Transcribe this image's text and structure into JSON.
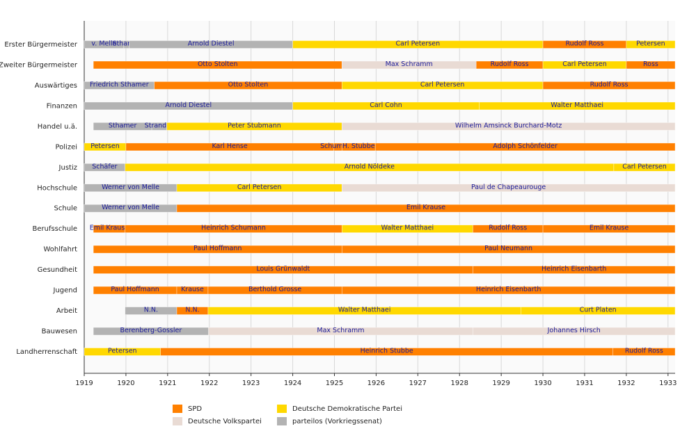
{
  "chart_data": {
    "type": "timeline",
    "xlim": [
      1919,
      1933.17
    ],
    "xticks": [
      1919,
      1920,
      1921,
      1922,
      1923,
      1924,
      1925,
      1926,
      1927,
      1928,
      1929,
      1930,
      1931,
      1932,
      1933
    ],
    "grid": true,
    "series": [
      {
        "name": "SPD",
        "color": "#ff8000"
      },
      {
        "name": "Deutsche Volkspartei",
        "color": "#e9dbd4"
      },
      {
        "name": "Deutsche Demokratische Partei",
        "color": "#ffd800"
      },
      {
        "name": "parteilos (Vorkriegssenat)",
        "color": "#b3b3b3"
      }
    ],
    "rows": [
      {
        "label": "Erster Bürgermeister",
        "segments": [
          {
            "name": "v. Melle",
            "party": 3,
            "start": 1919.0,
            "end": 1919.95
          },
          {
            "name": "Sthamer",
            "party": 3,
            "start": 1919.95,
            "end": 1920.08
          },
          {
            "name": "Arnold Diestel",
            "party": 3,
            "start": 1920.08,
            "end": 1924.0
          },
          {
            "name": "Carl Petersen",
            "party": 2,
            "start": 1924.0,
            "end": 1930.0
          },
          {
            "name": "Rudolf Ross",
            "party": 0,
            "start": 1930.0,
            "end": 1932.0
          },
          {
            "name": "Petersen",
            "party": 2,
            "start": 1932.0,
            "end": 1933.17
          }
        ]
      },
      {
        "label": "Zweiter Bürgermeister",
        "segments": [
          {
            "name": "Otto Stolten",
            "party": 0,
            "start": 1919.22,
            "end": 1925.18
          },
          {
            "name": "Max Schramm",
            "party": 1,
            "start": 1925.18,
            "end": 1928.4
          },
          {
            "name": "Rudolf Ross",
            "party": 0,
            "start": 1928.4,
            "end": 1930.0
          },
          {
            "name": "Carl Petersen",
            "party": 2,
            "start": 1930.0,
            "end": 1932.0
          },
          {
            "name": "Ross",
            "party": 0,
            "start": 1932.0,
            "end": 1933.17
          }
        ]
      },
      {
        "label": "Auswärtiges",
        "segments": [
          {
            "name": "Friedrich Sthamer",
            "party": 3,
            "start": 1919.0,
            "end": 1920.68
          },
          {
            "name": "Otto Stolten",
            "party": 0,
            "start": 1920.68,
            "end": 1925.18
          },
          {
            "name": "Carl Petersen",
            "party": 2,
            "start": 1925.18,
            "end": 1930.0
          },
          {
            "name": "Rudolf Ross",
            "party": 0,
            "start": 1930.0,
            "end": 1933.17
          }
        ]
      },
      {
        "label": "Finanzen",
        "segments": [
          {
            "name": "Arnold Diestel",
            "party": 3,
            "start": 1919.0,
            "end": 1924.0
          },
          {
            "name": "Carl Cohn",
            "party": 2,
            "start": 1924.0,
            "end": 1928.47
          },
          {
            "name": "Walter Matthaei",
            "party": 2,
            "start": 1928.47,
            "end": 1933.17
          }
        ]
      },
      {
        "label": "Handel u.ä.",
        "segments": [
          {
            "name": "Sthamer",
            "party": 3,
            "start": 1919.22,
            "end": 1920.62
          },
          {
            "name": "Strandes",
            "party": 3,
            "start": 1920.62,
            "end": 1920.98
          },
          {
            "name": "Peter Stubmann",
            "party": 2,
            "start": 1920.98,
            "end": 1925.18
          },
          {
            "name": "Wilhelm Amsinck Burchard-Motz",
            "party": 1,
            "start": 1925.18,
            "end": 1933.17
          }
        ]
      },
      {
        "label": "Polizei",
        "segments": [
          {
            "name": "Petersen",
            "party": 2,
            "start": 1919.0,
            "end": 1920.0
          },
          {
            "name": "Karl Hense",
            "party": 0,
            "start": 1920.0,
            "end": 1924.98
          },
          {
            "name": "Schumann",
            "party": 0,
            "start": 1924.98,
            "end": 1925.18
          },
          {
            "name": "H. Stubbe",
            "party": 0,
            "start": 1925.18,
            "end": 1925.98
          },
          {
            "name": "Adolph Schönfelder",
            "party": 0,
            "start": 1925.98,
            "end": 1933.17
          }
        ]
      },
      {
        "label": "Justiz",
        "segments": [
          {
            "name": "Schäfer",
            "party": 3,
            "start": 1919.0,
            "end": 1919.98
          },
          {
            "name": "Arnold Nöldeke",
            "party": 2,
            "start": 1919.98,
            "end": 1931.7
          },
          {
            "name": "Carl Petersen",
            "party": 2,
            "start": 1931.7,
            "end": 1933.17
          }
        ]
      },
      {
        "label": "Hochschule",
        "segments": [
          {
            "name": "Werner von Melle",
            "party": 3,
            "start": 1919.0,
            "end": 1921.22
          },
          {
            "name": "Carl Petersen",
            "party": 2,
            "start": 1921.22,
            "end": 1925.18
          },
          {
            "name": "Paul de Chapeaurouge",
            "party": 1,
            "start": 1925.18,
            "end": 1933.17
          }
        ]
      },
      {
        "label": "Schule",
        "segments": [
          {
            "name": "Werner von Melle",
            "party": 3,
            "start": 1919.0,
            "end": 1921.22
          },
          {
            "name": "Emil Krause",
            "party": 0,
            "start": 1921.22,
            "end": 1933.17
          }
        ]
      },
      {
        "label": "Berufsschule",
        "segments": [
          {
            "name": "Emil Krause",
            "party": 0,
            "start": 1919.22,
            "end": 1919.98
          },
          {
            "name": "Heinrich Schumann",
            "party": 0,
            "start": 1919.98,
            "end": 1925.18
          },
          {
            "name": "Walter Matthaei",
            "party": 2,
            "start": 1925.18,
            "end": 1928.32
          },
          {
            "name": "Rudolf Ross",
            "party": 0,
            "start": 1928.32,
            "end": 1930.0
          },
          {
            "name": "Emil Krause",
            "party": 0,
            "start": 1930.0,
            "end": 1933.17
          }
        ]
      },
      {
        "label": "Wohlfahrt",
        "segments": [
          {
            "name": "Paul Hoffmann",
            "party": 0,
            "start": 1919.22,
            "end": 1925.18
          },
          {
            "name": "Paul Neumann",
            "party": 0,
            "start": 1925.18,
            "end": 1933.17
          }
        ]
      },
      {
        "label": "Gesundheit",
        "segments": [
          {
            "name": "Louis Grünwaldt",
            "party": 0,
            "start": 1919.22,
            "end": 1928.32
          },
          {
            "name": "Heinrich Eisenbarth",
            "party": 0,
            "start": 1928.32,
            "end": 1933.17
          }
        ]
      },
      {
        "label": "Jugend",
        "segments": [
          {
            "name": "Paul Hoffmann",
            "party": 0,
            "start": 1919.22,
            "end": 1921.22
          },
          {
            "name": "Krause",
            "party": 0,
            "start": 1921.22,
            "end": 1921.97
          },
          {
            "name": "Berthold Grosse",
            "party": 0,
            "start": 1921.97,
            "end": 1925.18
          },
          {
            "name": "Heinrich Eisenbarth",
            "party": 0,
            "start": 1925.18,
            "end": 1933.17
          }
        ]
      },
      {
        "label": "Arbeit",
        "segments": [
          {
            "name": "N.N.",
            "party": 3,
            "start": 1919.98,
            "end": 1921.22
          },
          {
            "name": "N.N.",
            "party": 0,
            "start": 1921.22,
            "end": 1921.97
          },
          {
            "name": "Walter Matthaei",
            "party": 2,
            "start": 1921.97,
            "end": 1929.47
          },
          {
            "name": "Curt Platen",
            "party": 2,
            "start": 1929.47,
            "end": 1933.17
          }
        ]
      },
      {
        "label": "Bauwesen",
        "segments": [
          {
            "name": "Berenberg-Gossler",
            "party": 3,
            "start": 1919.22,
            "end": 1921.98
          },
          {
            "name": "Max Schramm",
            "party": 1,
            "start": 1921.98,
            "end": 1928.32
          },
          {
            "name": "Johannes Hirsch",
            "party": 1,
            "start": 1928.32,
            "end": 1933.17
          }
        ]
      },
      {
        "label": "Landherrenschaft",
        "segments": [
          {
            "name": "Petersen",
            "party": 2,
            "start": 1919.0,
            "end": 1920.83
          },
          {
            "name": "Heinrich Stubbe",
            "party": 0,
            "start": 1920.83,
            "end": 1931.68
          },
          {
            "name": "Rudolf Ross",
            "party": 0,
            "start": 1931.68,
            "end": 1933.17
          }
        ]
      }
    ]
  }
}
